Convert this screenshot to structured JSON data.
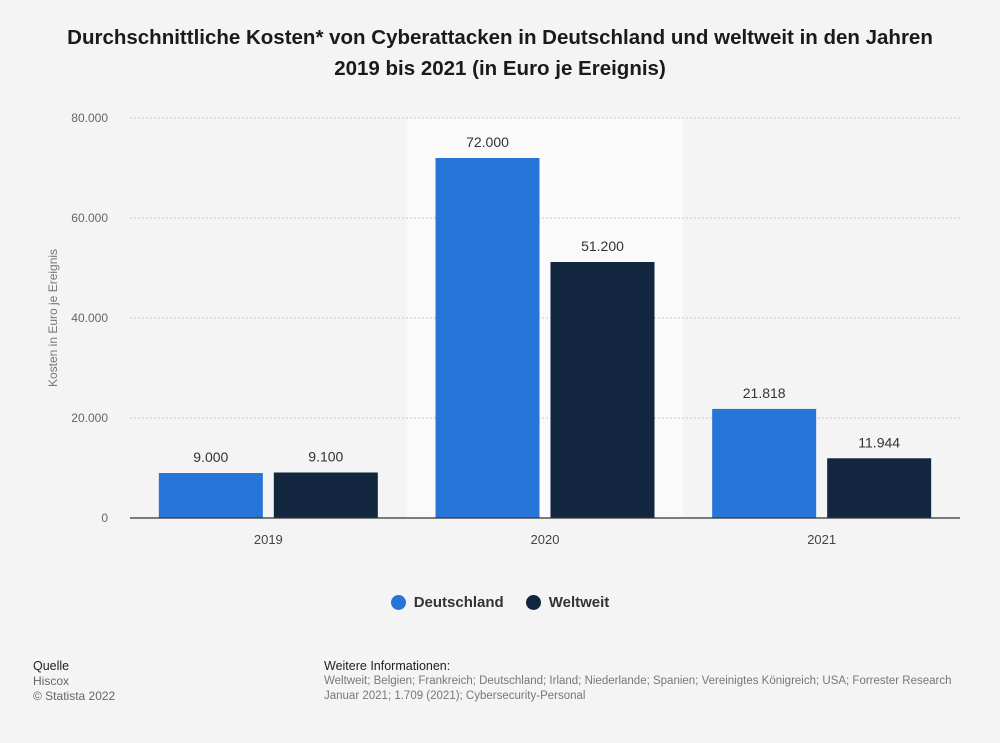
{
  "chart_data": {
    "type": "bar",
    "title": "Durchschnittliche Kosten* von Cyberattacken in Deutschland und weltweit in den Jahren 2019 bis 2021 (in Euro je Ereignis)",
    "categories": [
      "2019",
      "2020",
      "2021"
    ],
    "series": [
      {
        "name": "Deutschland",
        "color": "#2775d9",
        "values": [
          9000,
          72000,
          21818
        ],
        "labels": [
          "9.000",
          "72.000",
          "21.818"
        ]
      },
      {
        "name": "Weltweit",
        "color": "#12263f",
        "values": [
          9100,
          51200,
          11944
        ],
        "labels": [
          "9.100",
          "51.200",
          "11.944"
        ]
      }
    ],
    "xlabel": "",
    "ylabel": "Kosten in Euro je Ereignis",
    "ylim": [
      0,
      80000
    ],
    "yticks": [
      0,
      20000,
      40000,
      60000,
      80000
    ],
    "ytick_labels": [
      "0",
      "20.000",
      "40.000",
      "60.000",
      "80.000"
    ],
    "highlighted_category": "2020",
    "grid": true,
    "legend_position": "bottom"
  },
  "source": {
    "heading": "Quelle",
    "line1": "Hiscox",
    "line2": "© Statista 2022"
  },
  "info": {
    "heading": "Weitere Informationen:",
    "line1": "Weltweit; Belgien; Frankreich; Deutschland; Irland; Niederlande; Spanien; Vereinigtes Königreich; USA; Forrester Research",
    "line2": "Januar 2021; 1.709 (2021); Cybersecurity-Personal"
  }
}
